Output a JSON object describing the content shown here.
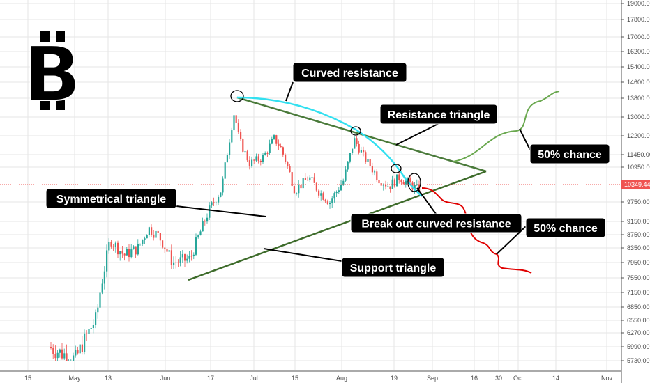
{
  "chart_data": {
    "type": "candlestick",
    "title": "",
    "currency_symbol": "₿",
    "y_axis": {
      "ticks": [
        "19000.00",
        "17800.00",
        "17000.00",
        "16200.00",
        "15400.00",
        "14600.00",
        "13800.00",
        "13000.00",
        "12200.00",
        "11450.00",
        "10950.00",
        "9750.00",
        "9150.00",
        "8750.00",
        "8350.00",
        "7950.00",
        "7550.00",
        "7150.00",
        "6850.00",
        "6550.00",
        "6270.00",
        "5990.00",
        "5730.00"
      ],
      "current_price_label": "10349.44",
      "current_price": 10349.44
    },
    "x_axis": {
      "ticks": [
        "15",
        "May",
        "13",
        "Jun",
        "17",
        "Jul",
        "15",
        "Aug",
        "19",
        "Sep",
        "16",
        "30",
        "Oct",
        "14",
        "Nov"
      ]
    },
    "colors": {
      "up": "#26a69a",
      "down": "#ef5350",
      "current_price_line": "#ef5350",
      "resistance_triangle": "#4a7a3a",
      "support_triangle": "#3d6b2a",
      "curved_resistance": "#33e0f0",
      "bullish_path": "#6aa84f",
      "bearish_path": "#e00000",
      "callout_bg": "#000000",
      "callout_text": "#ffffff"
    },
    "annotations": [
      {
        "label": "Curved resistance"
      },
      {
        "label": "Resistance triangle"
      },
      {
        "label": "Symmetrical triangle"
      },
      {
        "label": "Break out curved resistance"
      },
      {
        "label": "Support triangle"
      },
      {
        "label": "50% chance"
      },
      {
        "label": "50% chance"
      }
    ],
    "scenarios": [
      {
        "name": "bullish",
        "label": "50% chance",
        "color": "#6aa84f"
      },
      {
        "name": "bearish",
        "label": "50% chance",
        "color": "#e00000"
      }
    ]
  }
}
